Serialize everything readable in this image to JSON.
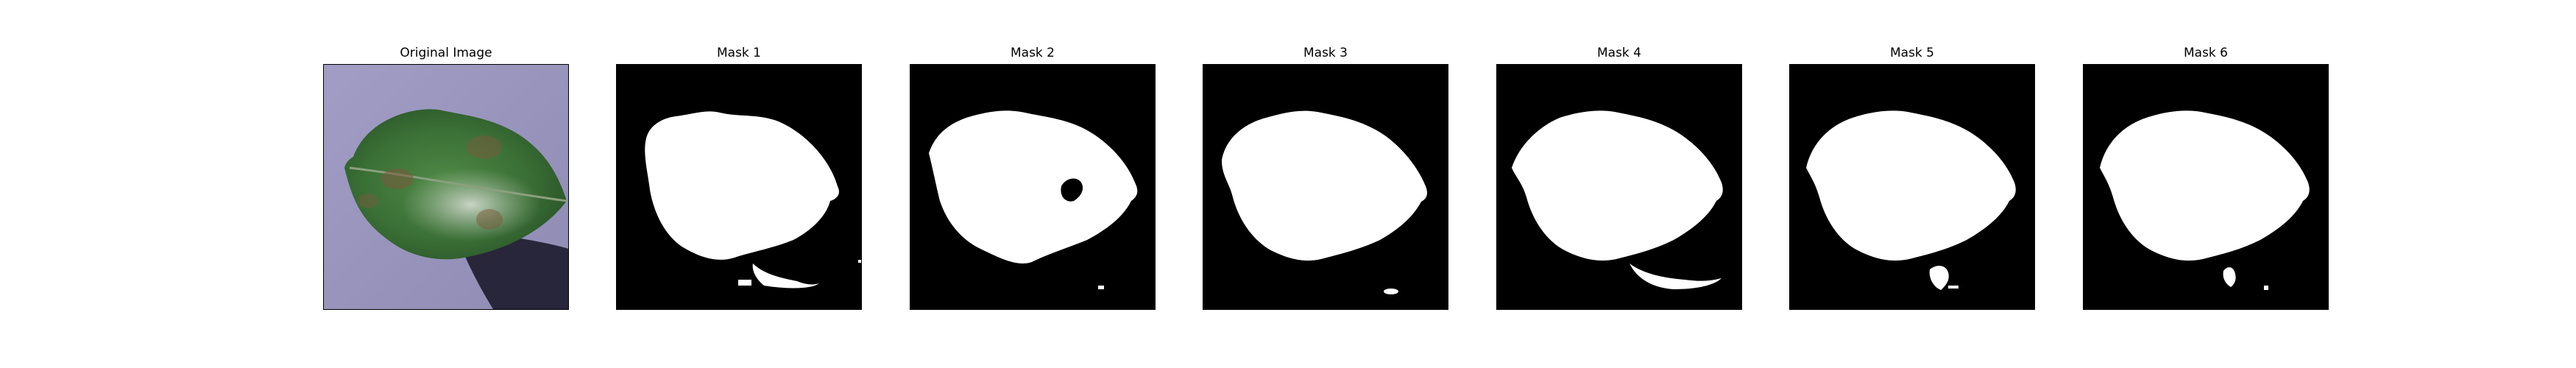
{
  "figure": {
    "panels": [
      {
        "title": "Original Image"
      },
      {
        "title": "Mask 1"
      },
      {
        "title": "Mask 2"
      },
      {
        "title": "Mask 3"
      },
      {
        "title": "Mask 4"
      },
      {
        "title": "Mask 5"
      },
      {
        "title": "Mask 6"
      }
    ]
  },
  "colors": {
    "background": "#ffffff",
    "mask_background": "#000000",
    "mask_foreground": "#ffffff",
    "leaf_green": "#3f7a3a",
    "photo_background": "#9c98bf"
  }
}
